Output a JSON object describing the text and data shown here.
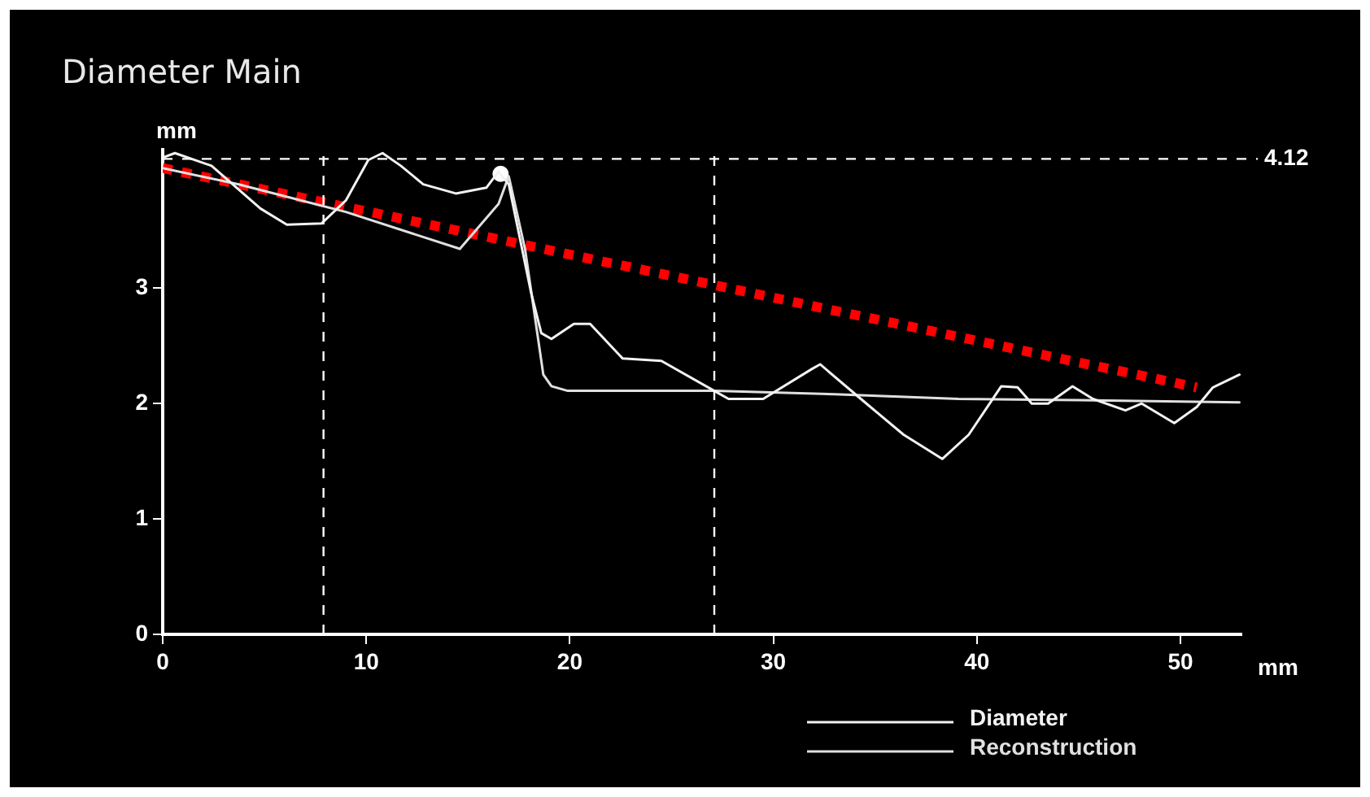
{
  "chart_data": {
    "type": "line",
    "title": "Diameter Main",
    "xlabel": "mm",
    "ylabel": "mm",
    "xlim": [
      0,
      53
    ],
    "ylim": [
      0,
      4.2
    ],
    "xticks": [
      0,
      10,
      20,
      30,
      40,
      50
    ],
    "yticks": [
      0,
      1,
      2,
      3
    ],
    "grid": false,
    "legend": "bottom right",
    "marker": "none",
    "ref_lines": [
      {
        "axis": "y",
        "value": 4.12,
        "label": "4.12",
        "line_style": "dashed",
        "color": "#ffffff"
      },
      {
        "axis": "x",
        "value": 7.9,
        "line_style": "dashed",
        "color": "#ffffff"
      },
      {
        "axis": "x",
        "value": 27.1,
        "line_style": "dashed",
        "color": "#ffffff"
      }
    ],
    "series": [
      {
        "name": "Diameter",
        "color": "#f2f2f2",
        "line_style": "solid",
        "x": [
          0,
          0.6,
          2.4,
          4.8,
          6.1,
          7.8,
          9.0,
          10.1,
          10.8,
          11.7,
          12.8,
          14.4,
          15.9,
          16.5,
          17.0,
          18.1,
          18.6,
          19.1,
          20.2,
          21.0,
          22.6,
          24.5,
          27.1,
          27.8,
          29.5,
          31.9,
          32.3,
          34.3,
          36.4,
          38.3,
          39.6,
          41.2,
          42.0,
          42.7,
          43.5,
          44.7,
          45.7,
          47.3,
          48.1,
          49.7,
          50.8,
          51.6,
          52.9
        ],
        "values": [
          4.13,
          4.17,
          4.06,
          3.69,
          3.55,
          3.56,
          3.76,
          4.11,
          4.17,
          4.06,
          3.9,
          3.82,
          3.87,
          4.01,
          3.9,
          2.96,
          2.61,
          2.56,
          2.69,
          2.69,
          2.39,
          2.37,
          2.11,
          2.04,
          2.04,
          2.3,
          2.34,
          2.04,
          1.73,
          1.52,
          1.73,
          2.15,
          2.14,
          2.0,
          2.0,
          2.15,
          2.04,
          1.94,
          2.0,
          1.83,
          1.97,
          2.14,
          2.25
        ]
      },
      {
        "name": "Reconstruction",
        "color": "#e0e0e0",
        "line_style": "solid",
        "x": [
          0,
          3.7,
          9.0,
          14.6,
          16.5,
          17.0,
          17.8,
          18.7,
          19.1,
          19.9,
          27.1,
          33,
          39.1,
          45,
          52.9
        ],
        "values": [
          4.04,
          3.9,
          3.66,
          3.34,
          3.73,
          3.97,
          3.34,
          2.25,
          2.15,
          2.11,
          2.11,
          2.08,
          2.04,
          2.03,
          2.01
        ]
      },
      {
        "type": "scatter",
        "color": "#ffffff",
        "marker": "circle",
        "x": [
          16.6
        ],
        "values": [
          3.99
        ]
      },
      {
        "type": "line",
        "color": "#ff0000",
        "line_style": "dotted",
        "x": [
          0,
          50.8
        ],
        "values": [
          4.04,
          2.14
        ]
      }
    ]
  }
}
